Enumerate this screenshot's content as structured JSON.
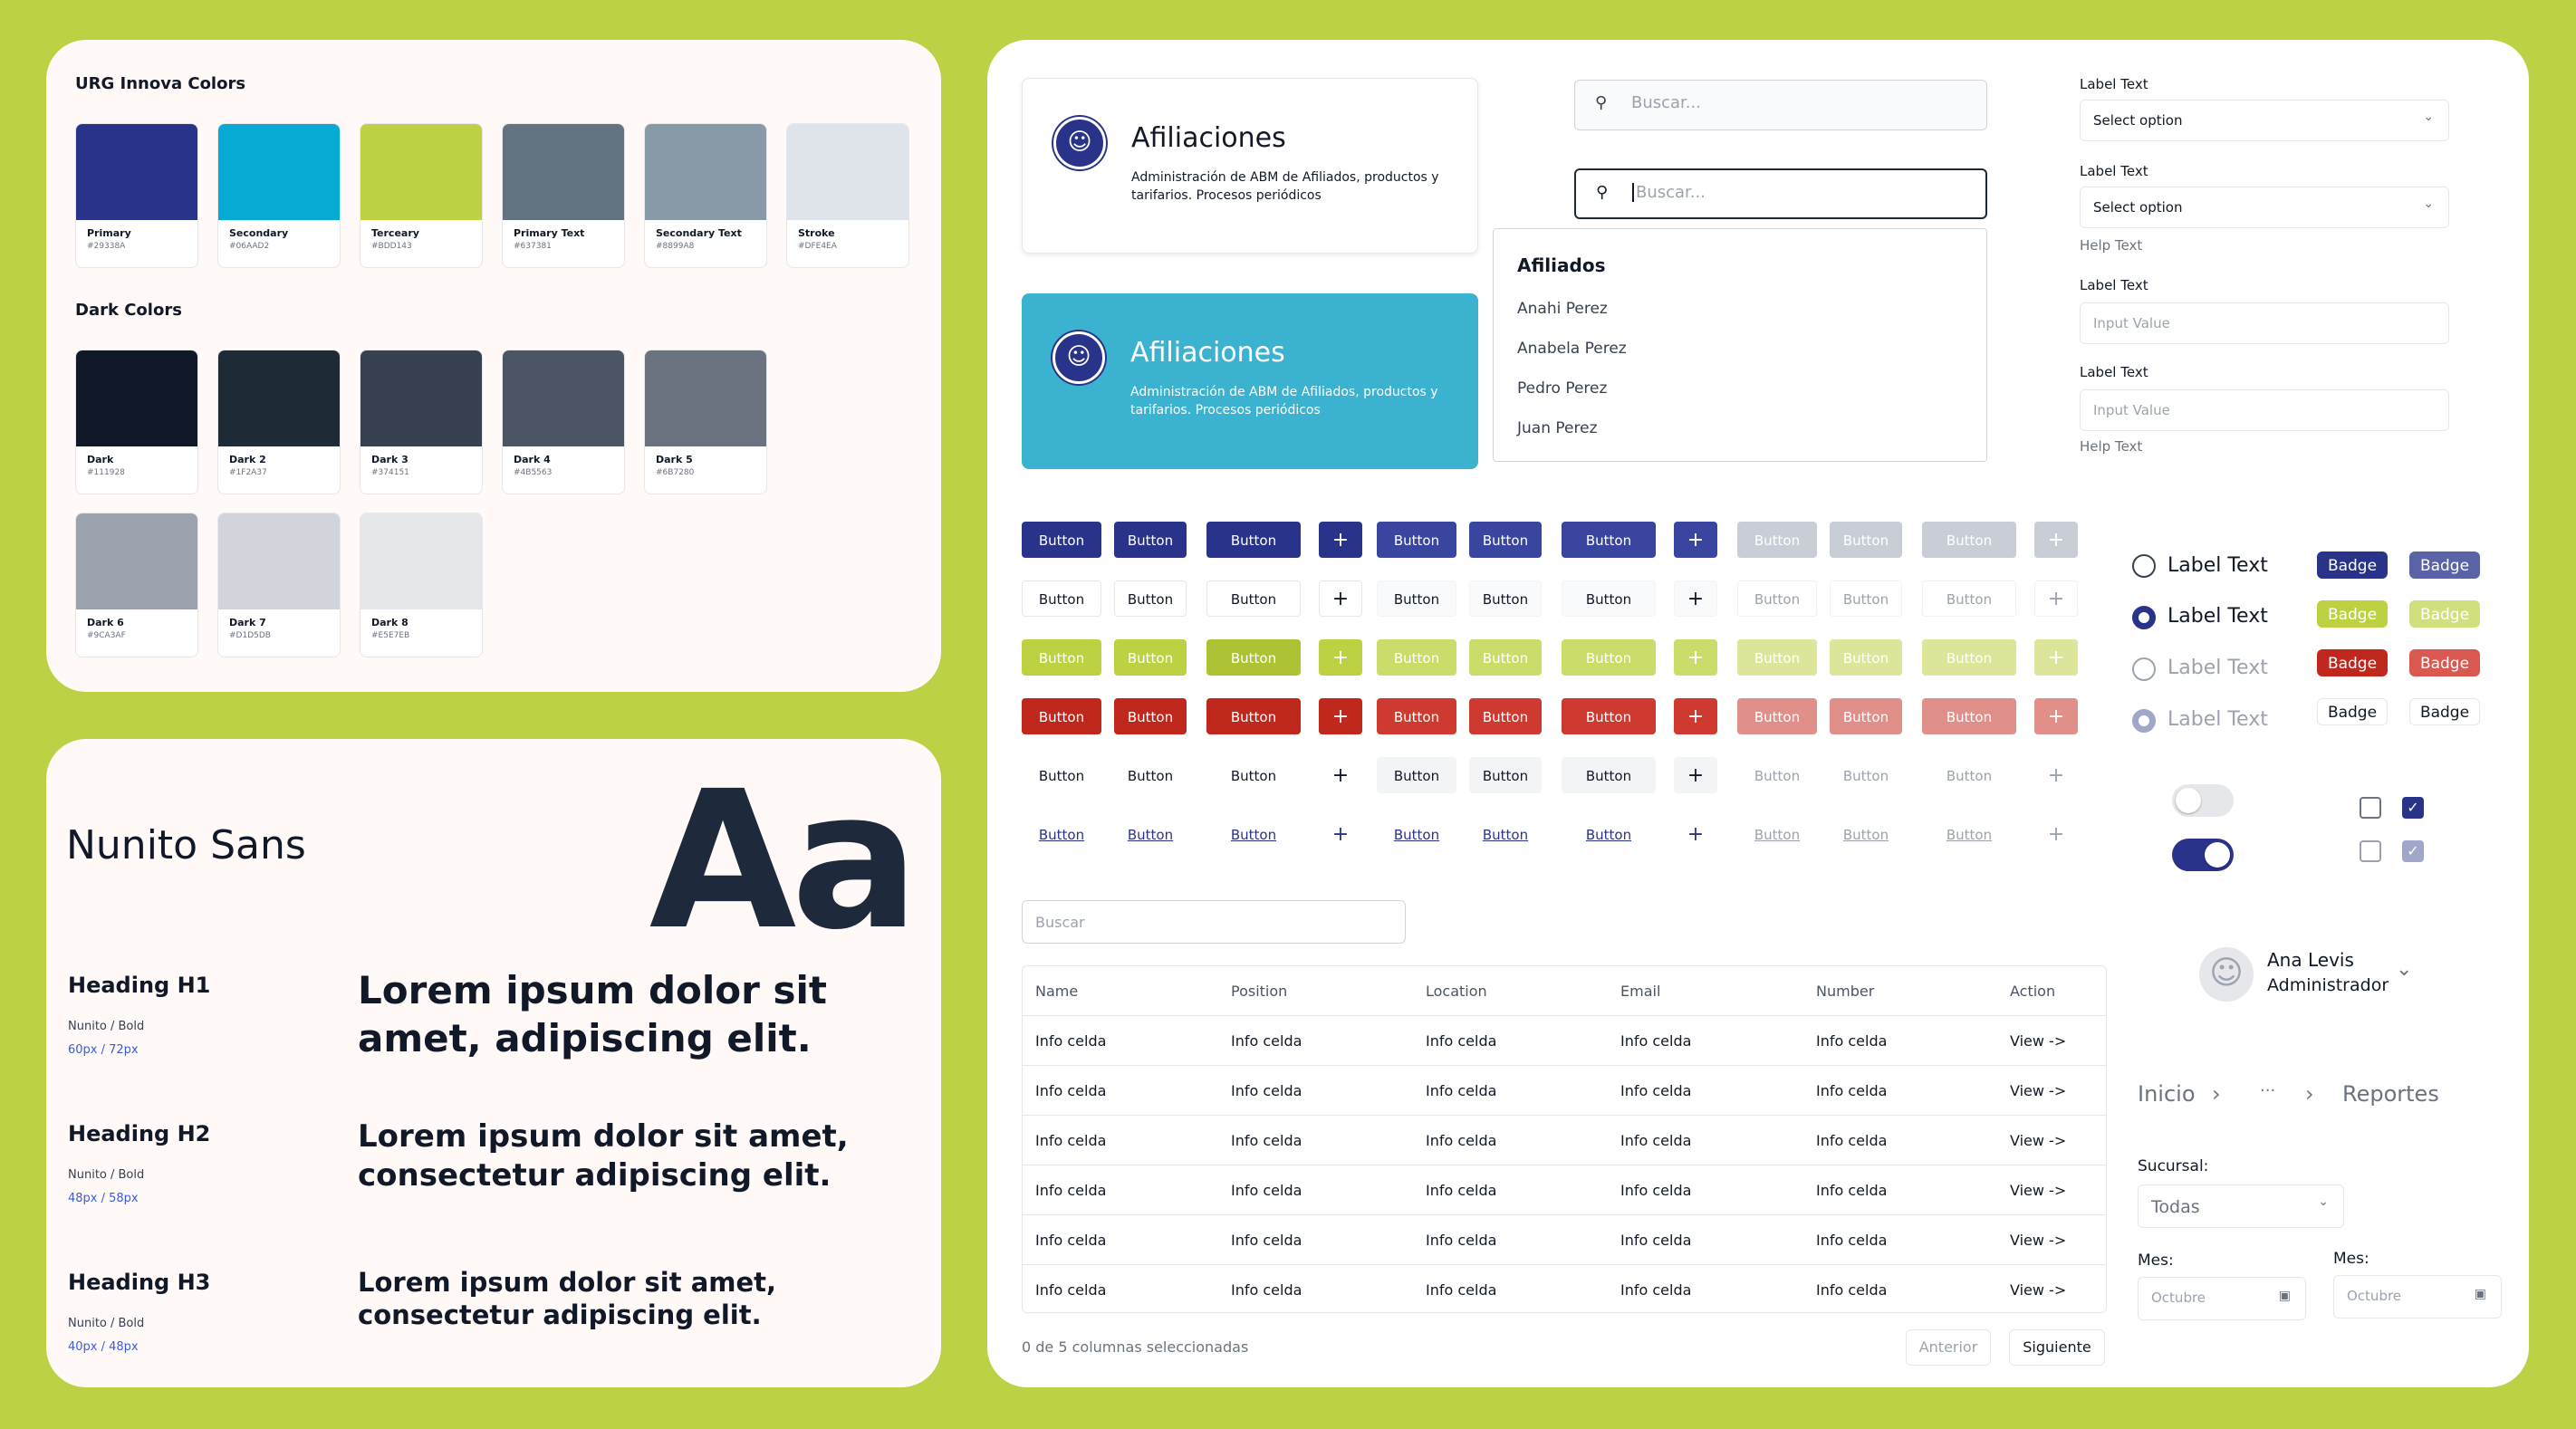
{
  "colors": {
    "title": "URG Innova Colors",
    "palette": [
      {
        "name": "Primary",
        "hex": "#29338A"
      },
      {
        "name": "Secondary",
        "hex": "#06AAD2"
      },
      {
        "name": "Terceary",
        "hex": "#BDD143"
      },
      {
        "name": "Primary Text",
        "hex": "#637381"
      },
      {
        "name": "Secondary Text",
        "hex": "#8899A8"
      },
      {
        "name": "Stroke",
        "hex": "#DFE4EA"
      }
    ],
    "dark_title": "Dark Colors",
    "dark": [
      {
        "name": "Dark",
        "hex": "#111928"
      },
      {
        "name": "Dark 2",
        "hex": "#1F2A37"
      },
      {
        "name": "Dark 3",
        "hex": "#374151"
      },
      {
        "name": "Dark 4",
        "hex": "#4B5563"
      },
      {
        "name": "Dark 5",
        "hex": "#6B7280"
      },
      {
        "name": "Dark 6",
        "hex": "#9CA3AF"
      },
      {
        "name": "Dark 7",
        "hex": "#D1D5DB"
      },
      {
        "name": "Dark 8",
        "hex": "#E5E7EB"
      }
    ]
  },
  "typography": {
    "font_name": "Nunito Sans",
    "sample_glyph": "Aa",
    "headings": [
      {
        "label": "Heading H1",
        "meta": "Nunito / Bold",
        "size": "60px / 72px",
        "sample": "Lorem ipsum dolor sit amet, adipiscing elit."
      },
      {
        "label": "Heading H2",
        "meta": "Nunito / Bold",
        "size": "48px / 58px",
        "sample": "Lorem ipsum dolor sit amet, consectetur adipiscing elit."
      },
      {
        "label": "Heading H3",
        "meta": "Nunito / Bold",
        "size": "40px / 48px",
        "sample": "Lorem ipsum dolor sit amet, consectetur adipiscing elit."
      }
    ]
  },
  "cards": {
    "title": "Afiliaciones",
    "description": "Administración de ABM de Afiliados, productos y tarifarios. Procesos periódicos"
  },
  "search": {
    "placeholder1": "Buscar...",
    "placeholder2": "Buscar...",
    "dropdown_header": "Afiliados",
    "results": [
      "Anahi Perez",
      "Anabela Perez",
      "Pedro Perez",
      "Juan Perez"
    ]
  },
  "form": {
    "label": "Label Text",
    "select_placeholder": "Select option",
    "input_value": "Input Value",
    "help_text": "Help Text"
  },
  "buttons": {
    "label": "Button",
    "plus": "+"
  },
  "table": {
    "search_placeholder": "Buscar",
    "headers": [
      "Name",
      "Position",
      "Location",
      "Email",
      "Number",
      "Action"
    ],
    "rows": [
      [
        "Info celda",
        "Info celda",
        "Info celda",
        "Info celda",
        "Info celda",
        "View ->"
      ],
      [
        "Info celda",
        "Info celda",
        "Info celda",
        "Info celda",
        "Info celda",
        "View ->"
      ],
      [
        "Info celda",
        "Info celda",
        "Info celda",
        "Info celda",
        "Info celda",
        "View ->"
      ],
      [
        "Info celda",
        "Info celda",
        "Info celda",
        "Info celda",
        "Info celda",
        "View ->"
      ],
      [
        "Info celda",
        "Info celda",
        "Info celda",
        "Info celda",
        "Info celda",
        "View ->"
      ],
      [
        "Info celda",
        "Info celda",
        "Info celda",
        "Info celda",
        "Info celda",
        "View ->"
      ]
    ],
    "selection_status": "0 de 5 columnas seleccionadas",
    "prev": "Anterior",
    "next": "Siguiente"
  },
  "controls": {
    "radio_label": "Label Text",
    "badge_label": "Badge"
  },
  "user": {
    "name": "Ana Levis",
    "role": "Administrador"
  },
  "breadcrumb": {
    "home": "Inicio",
    "ellipsis": "···",
    "current": "Reportes"
  },
  "filters": {
    "branch_label": "Sucursal:",
    "branch_value": "Todas",
    "month_label": "Mes:",
    "month_value": "Octubre"
  }
}
